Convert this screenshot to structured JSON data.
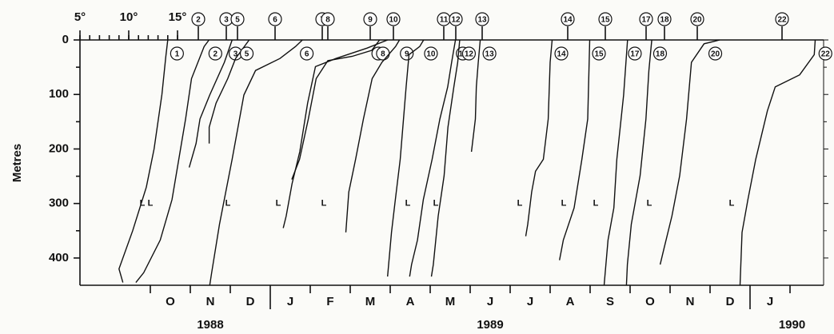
{
  "chart_data": {
    "type": "line",
    "y_label": "Metres",
    "ylim": [
      0,
      450
    ],
    "yticks": [
      0,
      100,
      200,
      300,
      400
    ],
    "xlim": [
      -1.76,
      16.84
    ],
    "months": [
      "O",
      "N",
      "D",
      "J",
      "F",
      "M",
      "A",
      "M",
      "J",
      "J",
      "A",
      "S",
      "O",
      "N",
      "D",
      "J"
    ],
    "years": [
      "1988",
      "1989",
      "1990"
    ],
    "tlim": [
      5,
      15
    ],
    "tticks": [
      {
        "value": 5,
        "label": "5°"
      },
      {
        "value": 10,
        "label": "10°"
      },
      {
        "value": 15,
        "label": "15°"
      }
    ],
    "tminor": [
      5,
      6,
      7,
      8,
      9,
      10,
      11,
      12,
      13,
      14,
      15
    ],
    "color": "#111111",
    "l_marks": {
      "label": "L",
      "depth": 300,
      "x": [
        -0.2,
        0,
        1.94,
        3.2,
        4.34,
        6.44,
        7.14,
        9.24,
        10.34,
        11.14,
        12.48,
        14.54
      ]
    },
    "profiles": [
      {
        "name": "1",
        "date": 0.68,
        "top_marker": false,
        "depths": [
          0,
          30,
          100,
          200,
          270,
          350,
          420,
          445
        ],
        "temps": [
          14.0,
          13.8,
          13.4,
          12.6,
          11.8,
          10.4,
          9.0,
          9.4
        ]
      },
      {
        "name": "2",
        "date": 1.2,
        "top_marker": true,
        "depths": [
          0,
          12,
          71,
          145,
          293,
          367,
          427,
          445
        ],
        "temps": [
          16.1,
          15.6,
          14.3,
          13.7,
          12.3,
          11.1,
          9.4,
          8.6
        ]
      },
      {
        "name": "3",
        "date": 1.9,
        "top_marker": true,
        "depths": [
          0,
          41,
          101,
          145,
          190,
          234
        ],
        "temps": [
          15.6,
          14.8,
          13.3,
          12.3,
          11.9,
          11.2
        ]
      },
      {
        "name": "5",
        "date": 2.18,
        "top_marker": true,
        "depths": [
          0,
          34,
          71,
          116,
          160,
          190
        ],
        "temps": [
          16.2,
          14.8,
          14.0,
          12.8,
          12.1,
          12.1
        ]
      },
      {
        "name": "6",
        "date": 3.12,
        "top_marker": true,
        "depths": [
          0,
          12,
          34,
          56,
          101,
          219,
          338,
          427,
          450
        ],
        "temps": [
          17.8,
          17.1,
          15.5,
          13.0,
          11.8,
          10.6,
          9.3,
          8.5,
          8.3
        ]
      },
      {
        "name": "7",
        "date": 4.3,
        "top_marker": true,
        "depths": [
          0,
          15,
          34,
          49,
          116,
          205,
          264,
          323,
          345
        ],
        "temps": [
          21.7,
          19.6,
          16.4,
          14.3,
          13.5,
          12.7,
          11.9,
          11.3,
          11.0
        ]
      },
      {
        "name": "8",
        "date": 4.44,
        "top_marker": true,
        "depths": [
          0,
          19,
          30,
          38,
          71,
          145,
          219,
          256
        ],
        "temps": [
          20.3,
          19.5,
          17.5,
          15.0,
          13.8,
          13.0,
          12.1,
          11.3
        ]
      },
      {
        "name": "9",
        "date": 5.5,
        "top_marker": true,
        "depths": [
          0,
          12,
          41,
          71,
          145,
          219,
          279,
          353
        ],
        "temps": [
          18.0,
          17.6,
          16.2,
          15.2,
          14.3,
          13.5,
          12.8,
          12.5
        ]
      },
      {
        "name": "10",
        "date": 6.08,
        "top_marker": true,
        "depths": [
          0,
          12,
          27,
          86,
          219,
          293,
          353,
          434
        ],
        "temps": [
          18.1,
          17.7,
          16.6,
          16.3,
          15.7,
          15.2,
          14.8,
          14.4
        ]
      },
      {
        "name": "11",
        "date": 7.34,
        "top_marker": true,
        "depths": [
          0,
          41,
          86,
          145,
          219,
          293,
          367,
          412,
          434
        ],
        "temps": [
          16.2,
          15.8,
          15.4,
          14.6,
          13.8,
          12.9,
          12.3,
          11.7,
          11.5
        ]
      },
      {
        "name": "12",
        "date": 7.64,
        "top_marker": true,
        "depths": [
          0,
          41,
          86,
          160,
          249,
          323,
          412,
          434
        ],
        "temps": [
          15.4,
          15.2,
          14.8,
          14.2,
          13.8,
          13.2,
          12.7,
          12.5
        ]
      },
      {
        "name": "13",
        "date": 8.3,
        "top_marker": true,
        "depths": [
          0,
          41,
          86,
          145,
          205
        ],
        "temps": [
          14.8,
          14.6,
          14.4,
          14.3,
          13.9
        ]
      },
      {
        "name": "14",
        "date": 10.44,
        "top_marker": true,
        "depths": [
          0,
          41,
          145,
          219,
          241,
          279,
          338,
          360
        ],
        "temps": [
          13.4,
          13.2,
          13.0,
          12.5,
          11.7,
          11.3,
          10.9,
          10.7
        ]
      },
      {
        "name": "15",
        "date": 11.38,
        "top_marker": true,
        "depths": [
          0,
          145,
          219,
          308,
          367,
          404
        ],
        "temps": [
          13.4,
          13.2,
          12.6,
          11.8,
          10.7,
          10.3
        ]
      },
      {
        "name": "17",
        "date": 12.4,
        "top_marker": true,
        "depths": [
          0,
          101,
          219,
          308,
          367,
          450
        ],
        "temps": [
          13.1,
          12.7,
          12.0,
          11.7,
          11.1,
          10.7
        ]
      },
      {
        "name": "18",
        "date": 12.86,
        "top_marker": true,
        "depths": [
          0,
          56,
          145,
          249,
          338,
          412,
          450
        ],
        "temps": [
          13.7,
          13.4,
          13.1,
          12.5,
          11.6,
          11.2,
          11.1
        ]
      },
      {
        "name": "20",
        "date": 13.68,
        "top_marker": true,
        "depths": [
          0,
          7,
          41,
          145,
          249,
          323,
          382,
          412
        ],
        "temps": [
          17.3,
          15.7,
          14.4,
          13.9,
          13.2,
          12.4,
          11.6,
          11.2
        ]
      },
      {
        "name": "22",
        "date": 15.8,
        "top_marker": true,
        "depths": [
          0,
          27,
          64,
          86,
          130,
          219,
          293,
          353,
          450
        ],
        "temps": [
          18.4,
          18.3,
          16.8,
          14.3,
          13.5,
          12.3,
          11.5,
          10.9,
          10.7
        ]
      }
    ]
  }
}
